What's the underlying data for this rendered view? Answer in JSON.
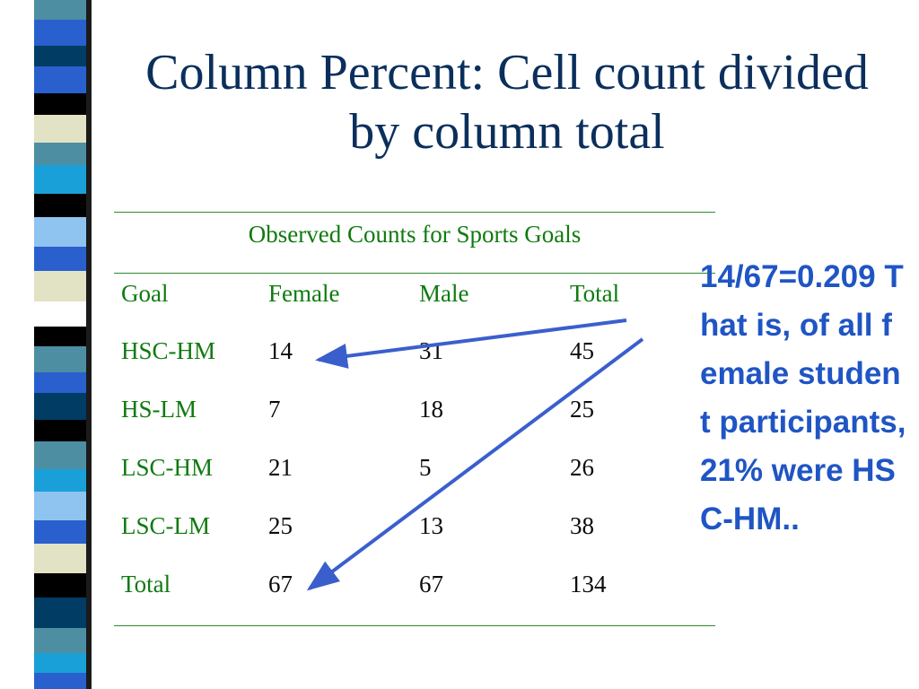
{
  "slide": {
    "title": "Column Percent: Cell count divided by column total",
    "colors": {
      "title": "#0b2f5c",
      "table_text": "#0f7a0f",
      "note": "#1f55c4",
      "arrow": "#3a5fcd"
    }
  },
  "table": {
    "caption": "Observed Counts for Sports Goals",
    "headers": [
      "Goal",
      "Female",
      "Male",
      "Total"
    ],
    "rows": [
      [
        "HSC-HM",
        "14",
        "31",
        "45"
      ],
      [
        "HS-LM",
        "7",
        "18",
        "25"
      ],
      [
        "LSC-HM",
        "21",
        "5",
        "26"
      ],
      [
        "LSC-LM",
        "25",
        "13",
        "38"
      ],
      [
        "Total",
        "67",
        "67",
        "134"
      ]
    ]
  },
  "annotation": {
    "text": "14/67=0.209 That is, of all female student participants, 21% were HSC-HM.."
  },
  "decorations": {
    "stripe_palette": [
      "#4d8ea3",
      "#2a5fce",
      "#003c64",
      "#000000",
      "#e2e2c4",
      "#1aa0d8",
      "#8fc4f0",
      "#ffffff"
    ]
  }
}
